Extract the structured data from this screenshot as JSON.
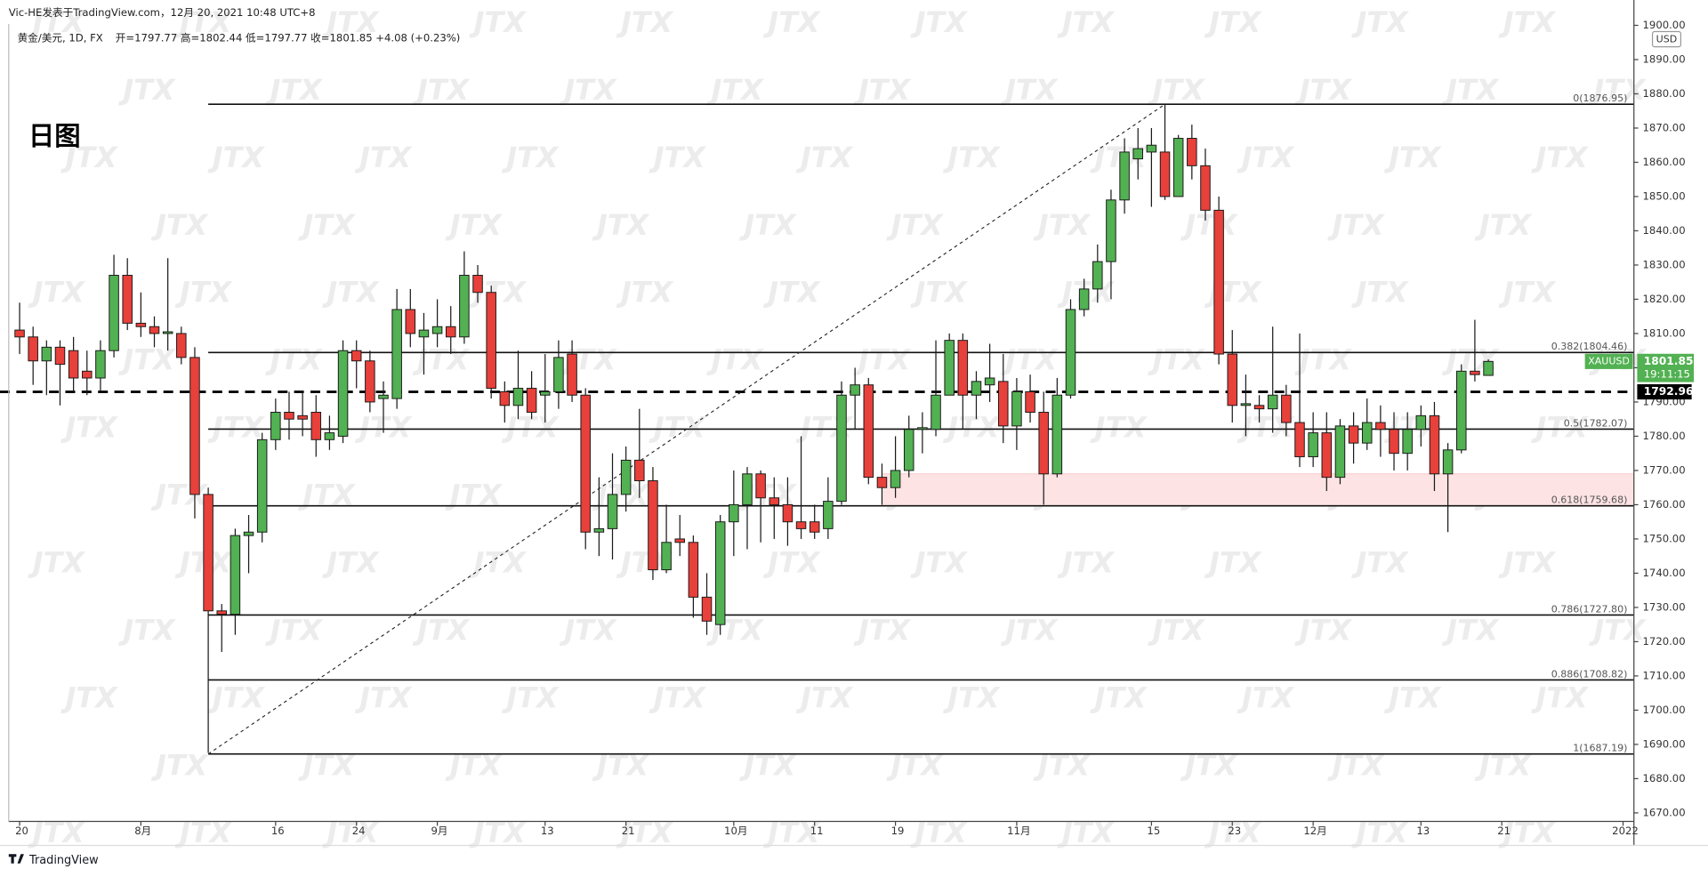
{
  "chart_data": {
    "type": "candlestick",
    "title": "Vic-HE发表于TradingView.com，12月 20, 2021 10:48 UTC+8",
    "legend_symbol": "黄金/美元, 1D, FX",
    "legend_quote": "开=1797.77 高=1802.44 低=1797.77 收=1801.85 +4.08 (+0.23%)",
    "annotation": "日图",
    "currency": "USD",
    "symbol_tag": "XAUUSD",
    "countdown": "19:11:15",
    "watermark": "JTX",
    "brand": "TradingView",
    "up_color": "#52b152",
    "down_color": "#e8403a",
    "categories": [
      "20",
      null,
      null,
      null,
      null,
      null,
      null,
      null,
      null,
      "8月",
      null,
      null,
      null,
      null,
      null,
      null,
      null,
      null,
      null,
      "16",
      null,
      null,
      null,
      null,
      null,
      "24",
      null,
      null,
      null,
      null,
      null,
      "9月",
      null,
      null,
      null,
      null,
      null,
      null,
      null,
      "13",
      null,
      null,
      null,
      null,
      null,
      "21",
      null,
      null,
      null,
      null,
      null,
      null,
      null,
      "10月",
      null,
      null,
      null,
      null,
      null,
      "11",
      null,
      null,
      null,
      null,
      null,
      "19",
      null,
      null,
      null,
      null,
      null,
      null,
      null,
      null,
      "11月",
      null,
      null,
      null,
      null,
      null,
      null,
      null,
      null,
      null,
      "15",
      null,
      null,
      null,
      null,
      null,
      "23",
      null,
      null,
      null,
      null,
      null,
      "12月",
      null,
      null,
      null,
      null,
      null,
      null,
      null,
      "13",
      null,
      null,
      null,
      null,
      null,
      "21",
      null,
      null,
      null,
      null,
      null,
      null,
      null,
      null,
      "2022"
    ],
    "open": [
      1811,
      1809,
      1802,
      1806,
      1805,
      1799,
      1797,
      1805,
      1827,
      1813,
      1812,
      1810,
      1810,
      1803,
      1763,
      1729,
      1728,
      1751,
      1752,
      1779,
      1787,
      1786,
      1787,
      1779,
      1780,
      1805,
      1802,
      1791,
      1791,
      1817,
      1809,
      1810,
      1812,
      1809,
      1827,
      1822,
      1793,
      1789,
      1794,
      1792,
      1793,
      1804,
      1792,
      1752,
      1753,
      1763,
      1773,
      1767,
      1741,
      1750,
      1749,
      1733,
      1725,
      1755,
      1760,
      1769,
      1762,
      1760,
      1755,
      1755,
      1753,
      1761,
      1792,
      1795,
      1768,
      1765,
      1770,
      1782,
      1782,
      1792,
      1808,
      1792,
      1795,
      1796,
      1783,
      1793,
      1787,
      1769,
      1792,
      1817,
      1823,
      1831,
      1849,
      1861,
      1863,
      1863,
      1850,
      1867,
      1859,
      1846,
      1804,
      1789,
      1789,
      1788,
      1792,
      1784,
      1774,
      1781,
      1768,
      1783,
      1778,
      1784,
      1782,
      1775,
      1782,
      1786,
      1769,
      1776,
      1799,
      1797.77,
      null,
      null,
      null,
      null,
      null,
      null,
      null,
      null,
      null,
      null
    ],
    "high": [
      1819,
      1812,
      1808,
      1808,
      1809,
      1805,
      1808,
      1833,
      1832,
      1822,
      1815,
      1832,
      1812,
      1806,
      1765,
      1731,
      1753,
      1757,
      1781,
      1791,
      1793,
      1793,
      1792,
      1786,
      1808,
      1808,
      1805,
      1796,
      1823,
      1823,
      1816,
      1820,
      1818,
      1834,
      1830,
      1824,
      1796,
      1805,
      1799,
      1804,
      1808,
      1808,
      1794,
      1768,
      1775,
      1777,
      1788,
      1771,
      1760,
      1757,
      1751,
      1740,
      1757,
      1770,
      1771,
      1770,
      1768,
      1768,
      1780,
      1760,
      1768,
      1796,
      1800,
      1797,
      1772,
      1780,
      1786,
      1787,
      1808,
      1810,
      1810,
      1799,
      1807,
      1804,
      1797,
      1798,
      1793,
      1797,
      1820,
      1826,
      1836,
      1852,
      1867,
      1870,
      1870,
      1877,
      1868,
      1871,
      1864,
      1850,
      1811,
      1798,
      1792,
      1812,
      1795,
      1810,
      1787,
      1787,
      1785,
      1787,
      1791,
      1789,
      1787,
      1787,
      1789,
      1790,
      1778,
      1801,
      1814,
      1802.44,
      null,
      null,
      null,
      null,
      null,
      null,
      null,
      null,
      null,
      null
    ],
    "low": [
      1804,
      1795,
      1792,
      1789,
      1793,
      1792,
      1793,
      1803,
      1811,
      1809,
      1806,
      1805,
      1801,
      1756,
      1687.5,
      1717,
      1722,
      1740,
      1749,
      1776,
      1779,
      1780,
      1774,
      1776,
      1778,
      1794,
      1787,
      1781,
      1788,
      1806,
      1798,
      1806,
      1804,
      1807,
      1819,
      1791,
      1784,
      1785,
      1785,
      1784,
      1788,
      1790,
      1747,
      1745,
      1744,
      1758,
      1762,
      1738,
      1740,
      1745,
      1727,
      1722,
      1722,
      1745,
      1747,
      1749,
      1750,
      1748,
      1750,
      1750,
      1750,
      1760,
      1782,
      1766,
      1760,
      1762,
      1768,
      1775,
      1780,
      1792,
      1782,
      1785,
      1790,
      1778,
      1776,
      1784,
      1760,
      1768,
      1791,
      1815,
      1819,
      1820,
      1845,
      1855,
      1847,
      1849,
      1850,
      1855,
      1843,
      1801,
      1784,
      1780,
      1784,
      1781,
      1780,
      1771,
      1771,
      1764,
      1766,
      1772,
      1776,
      1774,
      1770,
      1770,
      1777,
      1764,
      1752,
      1775,
      1796,
      1797.77,
      null,
      null,
      null,
      null,
      null,
      null,
      null,
      null,
      null,
      null
    ],
    "close": [
      1809,
      1802,
      1806,
      1801,
      1797,
      1797,
      1805,
      1827,
      1813,
      1812,
      1810,
      1810.5,
      1803,
      1763,
      1729,
      1728,
      1751,
      1752,
      1779,
      1787,
      1785,
      1785,
      1779,
      1781,
      1805,
      1802,
      1790,
      1792,
      1817,
      1810,
      1811,
      1812,
      1809,
      1827,
      1822,
      1794,
      1789,
      1794,
      1787,
      1793,
      1803,
      1792,
      1752,
      1753,
      1763,
      1773,
      1767,
      1741,
      1749,
      1749,
      1733,
      1726,
      1755,
      1760,
      1769,
      1762,
      1760,
      1755,
      1753,
      1752,
      1761,
      1792,
      1795,
      1768,
      1765,
      1770,
      1782,
      1782.5,
      1792,
      1808,
      1792,
      1796,
      1797,
      1783,
      1793,
      1787,
      1769,
      1792,
      1817,
      1823,
      1831,
      1849,
      1863,
      1864,
      1865,
      1850,
      1867,
      1859,
      1846,
      1804,
      1789,
      1789.5,
      1788,
      1792,
      1784,
      1774,
      1781,
      1768,
      1783,
      1778,
      1784,
      1782,
      1775,
      1782,
      1786,
      1769,
      1776,
      1799,
      1798,
      1801.85,
      null,
      null,
      null,
      null,
      null,
      null,
      null,
      null,
      null,
      null
    ],
    "ylim": [
      1667.5,
      1907.4
    ],
    "yticks": [
      {
        "value": 1670,
        "label": "1670.00"
      },
      {
        "value": 1680,
        "label": "1680.00"
      },
      {
        "value": 1690,
        "label": "1690.00"
      },
      {
        "value": 1700,
        "label": "1700.00"
      },
      {
        "value": 1710,
        "label": "1710.00"
      },
      {
        "value": 1720,
        "label": "1720.00"
      },
      {
        "value": 1730,
        "label": "1730.00"
      },
      {
        "value": 1740,
        "label": "1740.00"
      },
      {
        "value": 1750,
        "label": "1750.00"
      },
      {
        "value": 1760,
        "label": "1760.00"
      },
      {
        "value": 1770,
        "label": "1770.00"
      },
      {
        "value": 1780,
        "label": "1780.00"
      },
      {
        "value": 1790,
        "label": "1790.00"
      },
      {
        "value": 1800,
        "label": "1800.00"
      },
      {
        "value": 1810,
        "label": "1810.00"
      },
      {
        "value": 1820,
        "label": "1820.00"
      },
      {
        "value": 1830,
        "label": "1830.00"
      },
      {
        "value": 1840,
        "label": "1840.00"
      },
      {
        "value": 1850,
        "label": "1850.00"
      },
      {
        "value": 1860,
        "label": "1860.00"
      },
      {
        "value": 1870,
        "label": "1870.00"
      },
      {
        "value": 1880,
        "label": "1880.00"
      },
      {
        "value": 1890,
        "label": "1890.00"
      },
      {
        "value": 1900,
        "label": "1900.00"
      }
    ],
    "fib_levels": [
      {
        "value": 1876.95,
        "label": "0(1876.95)"
      },
      {
        "value": 1804.46,
        "label": "0.382(1804.46)"
      },
      {
        "value": 1782.07,
        "label": "0.5(1782.07)"
      },
      {
        "value": 1759.68,
        "label": "0.618(1759.68)"
      },
      {
        "value": 1727.8,
        "label": "0.786(1727.80)"
      },
      {
        "value": 1708.82,
        "label": "0.886(1708.82)"
      },
      {
        "value": 1687.19,
        "label": "1(1687.19)"
      }
    ],
    "trend_line": {
      "from": [
        14,
        1687.19
      ],
      "to": [
        85,
        1876.95
      ]
    },
    "zone": {
      "start": 64,
      "from": 1759.68,
      "to": 1769
    },
    "dashed_level": 1792.96
  }
}
